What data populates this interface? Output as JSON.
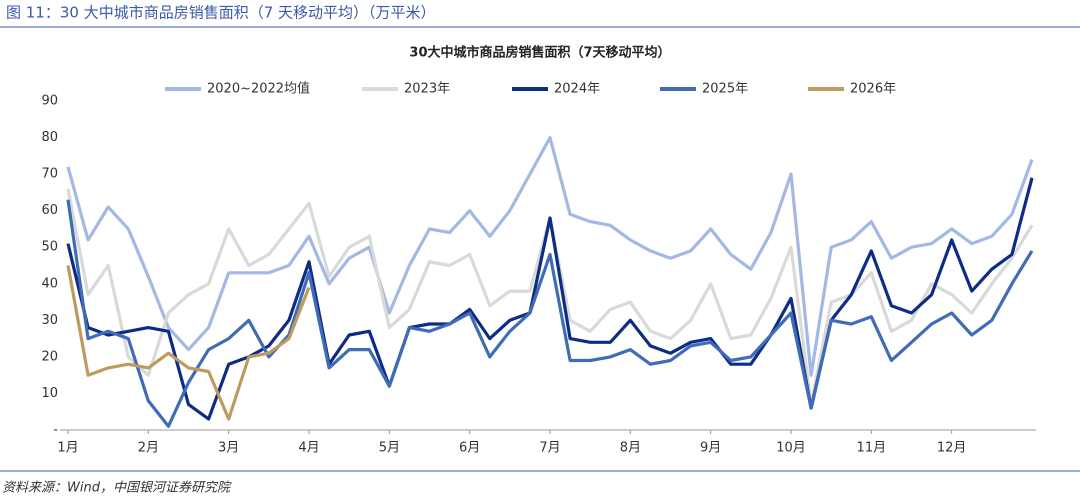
{
  "header": "图 11：30 大中城市商品房销售面积（7 天移动平均）（万平米）",
  "source": "资料来源：Wind，中国银河证券研究院",
  "chart_data": {
    "type": "line",
    "title": "30大中城市商品房销售面积（7天移动平均）",
    "categories": [
      "1月",
      null,
      null,
      null,
      "2月",
      null,
      null,
      null,
      "3月",
      null,
      null,
      null,
      "4月",
      null,
      null,
      null,
      "5月",
      null,
      null,
      null,
      "6月",
      null,
      null,
      null,
      "7月",
      null,
      null,
      null,
      "8月",
      null,
      null,
      null,
      "9月",
      null,
      null,
      null,
      "10月",
      null,
      null,
      null,
      "11月",
      null,
      null,
      null,
      "12月",
      null,
      null,
      null,
      null
    ],
    "ylim": [
      0,
      90
    ],
    "yticks": [
      {
        "value": 0,
        "label": "-"
      },
      10,
      20,
      30,
      40,
      50,
      60,
      70,
      80,
      90
    ],
    "grid": false,
    "legend": "top",
    "series": [
      {
        "name": "2020~2022均值",
        "color": "#a3b8e4",
        "values": [
          72,
          52,
          61,
          55,
          42,
          28,
          22,
          28,
          43,
          43,
          43,
          45,
          53,
          40,
          47,
          50,
          32,
          45,
          55,
          54,
          60,
          53,
          60,
          70,
          80,
          59,
          57,
          56,
          52,
          49,
          47,
          49,
          55,
          48,
          44,
          54,
          70,
          15,
          50,
          52,
          57,
          47,
          50,
          51,
          55,
          51,
          53,
          59,
          74
        ]
      },
      {
        "name": "2023年",
        "color": "#d9d9d9",
        "values": [
          66,
          37,
          45,
          20,
          15,
          32,
          37,
          40,
          55,
          45,
          48,
          55,
          62,
          42,
          50,
          53,
          28,
          33,
          46,
          45,
          48,
          34,
          38,
          38,
          58,
          30,
          27,
          33,
          35,
          27,
          25,
          30,
          40,
          25,
          26,
          36,
          50,
          7,
          35,
          37,
          43,
          27,
          30,
          40,
          37,
          32,
          40,
          47,
          56
        ]
      },
      {
        "name": "2024年",
        "color": "#0d2c86",
        "values": [
          51,
          28,
          26,
          27,
          28,
          27,
          7,
          3,
          18,
          20,
          23,
          30,
          46,
          18,
          26,
          27,
          12,
          28,
          29,
          29,
          33,
          25,
          30,
          32,
          58,
          25,
          24,
          24,
          30,
          23,
          21,
          24,
          25,
          18,
          18,
          26,
          36,
          6,
          30,
          37,
          49,
          34,
          32,
          37,
          52,
          38,
          44,
          48,
          69
        ]
      },
      {
        "name": "2025年",
        "color": "#3f6cb5",
        "values": [
          63,
          25,
          27,
          25,
          8,
          1,
          13,
          22,
          25,
          30,
          20,
          26,
          43,
          17,
          22,
          22,
          12,
          28,
          27,
          29,
          32,
          20,
          27,
          32,
          48,
          19,
          19,
          20,
          22,
          18,
          19,
          23,
          24,
          19,
          20,
          26,
          32,
          6,
          30,
          29,
          31,
          19,
          24,
          29,
          32,
          26,
          30,
          40,
          49
        ]
      },
      {
        "name": "2026年",
        "color": "#bf9a60",
        "values": [
          45,
          15,
          17,
          18,
          17,
          21,
          17,
          16,
          3,
          20,
          21,
          25,
          39,
          null,
          null,
          null,
          null,
          null,
          null,
          null,
          null,
          null,
          null,
          null,
          null,
          null,
          null,
          null,
          null,
          null,
          null,
          null,
          null,
          null,
          null,
          null,
          null,
          null,
          null,
          null,
          null,
          null,
          null,
          null,
          null,
          null,
          null,
          null,
          null
        ]
      }
    ]
  }
}
